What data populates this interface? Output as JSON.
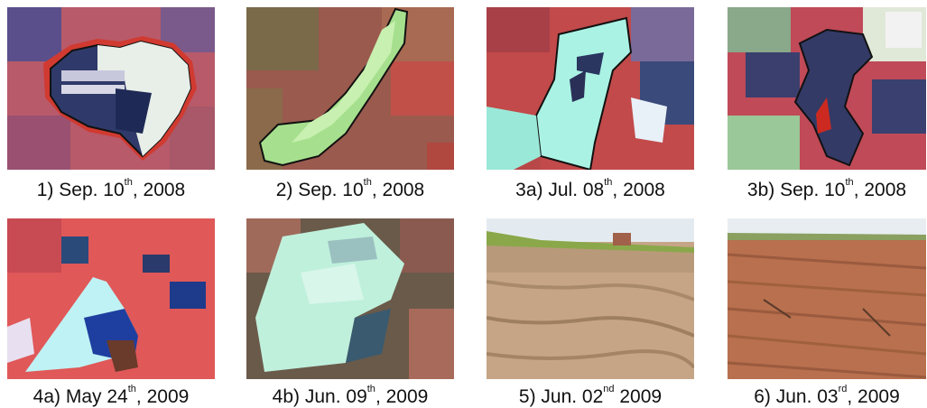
{
  "captions": [
    {
      "prefix": "1) Sep. 10",
      "sup": "th",
      "suffix": ", 2008"
    },
    {
      "prefix": "2) Sep. 10",
      "sup": "th",
      "suffix": ", 2008"
    },
    {
      "prefix": "3a) Jul. 08",
      "sup": "th",
      "suffix": ", 2008"
    },
    {
      "prefix": "3b) Sep. 10",
      "sup": "th",
      "suffix": ", 2008"
    },
    {
      "prefix": "4a) May 24",
      "sup": "th",
      "suffix": ", 2009"
    },
    {
      "prefix": "4b) Jun. 09",
      "sup": "th",
      "suffix": ", 2009"
    },
    {
      "prefix": "5) Jun. 02",
      "sup": "nd",
      "suffix": " 2009"
    },
    {
      "prefix": "6) Jun. 03",
      "sup": "rd",
      "suffix": ", 2009"
    }
  ],
  "colors": {
    "vegetation_red": "#c2454a",
    "field_blue": "#3b3f6e",
    "bright_cyan": "#b9f0df",
    "field_green": "#9fd98a",
    "straw": "#c9a98a",
    "soil": "#b5684a",
    "sky": "#e4ebf0"
  }
}
